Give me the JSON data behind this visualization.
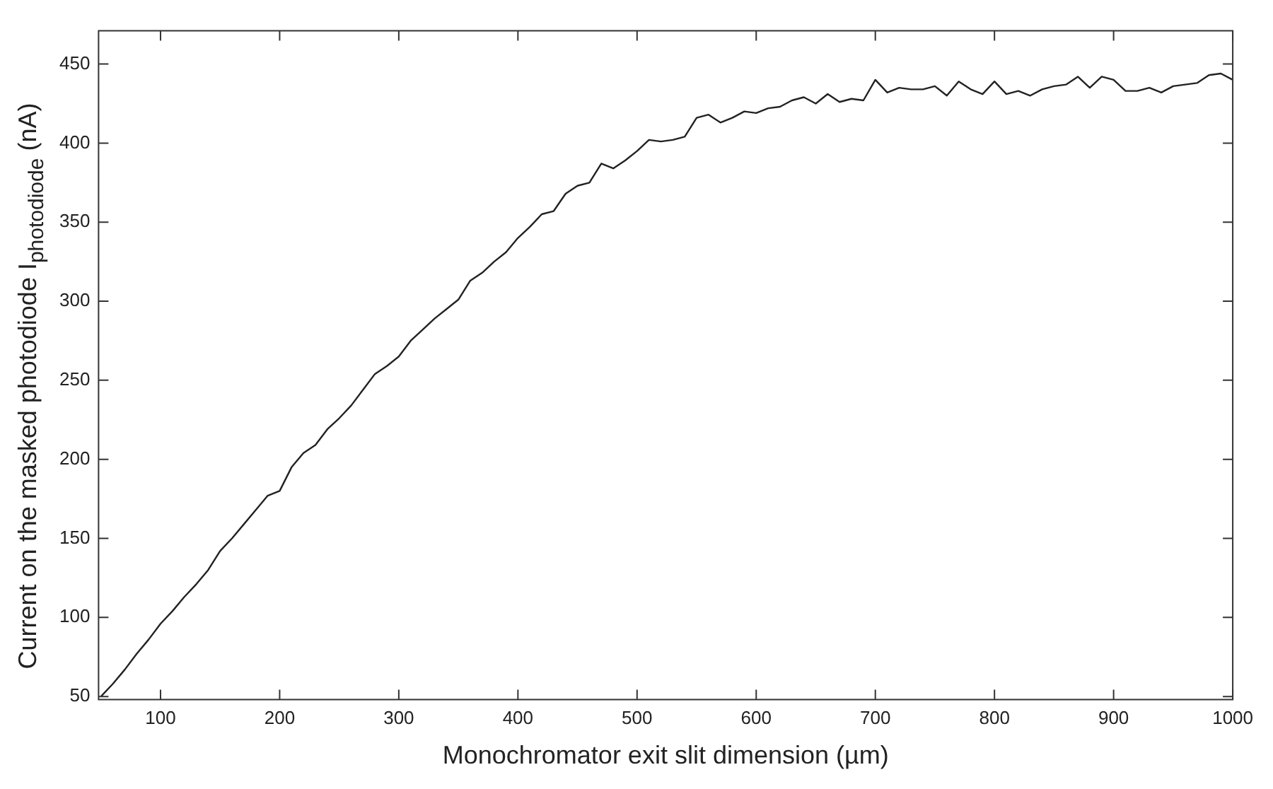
{
  "chart_data": {
    "type": "line",
    "xlabel": "Monochromator exit slit dimension (µm)",
    "ylabel": "Current on the masked photodiode I$_{photodiode}$ (nA)",
    "x": [
      50,
      60,
      70,
      80,
      90,
      100,
      110,
      120,
      130,
      140,
      150,
      160,
      170,
      180,
      190,
      200,
      210,
      220,
      230,
      240,
      250,
      260,
      270,
      280,
      290,
      300,
      310,
      320,
      330,
      340,
      350,
      360,
      370,
      380,
      390,
      400,
      410,
      420,
      430,
      440,
      450,
      460,
      470,
      480,
      490,
      500,
      510,
      520,
      530,
      540,
      550,
      560,
      570,
      580,
      590,
      600,
      610,
      620,
      630,
      640,
      650,
      660,
      670,
      680,
      690,
      700,
      710,
      720,
      730,
      740,
      750,
      760,
      770,
      780,
      790,
      800,
      810,
      820,
      830,
      840,
      850,
      860,
      870,
      880,
      890,
      900,
      910,
      920,
      930,
      940,
      950,
      960,
      970,
      980,
      990,
      1000
    ],
    "series": [
      {
        "color": "#222222",
        "values": [
          50,
          58,
          67,
          77,
          86,
          96,
          104,
          113,
          121,
          130,
          142,
          150,
          159,
          168,
          177,
          180,
          195,
          204,
          209,
          219,
          226,
          234,
          244,
          254,
          259,
          265,
          275,
          282,
          289,
          295,
          301,
          313,
          318,
          325,
          331,
          340,
          347,
          355,
          357,
          368,
          373,
          375,
          387,
          384,
          389,
          395,
          402,
          401,
          402,
          404,
          416,
          418,
          413,
          416,
          420,
          419,
          422,
          423,
          427,
          429,
          425,
          431,
          426,
          428,
          427,
          440,
          432,
          435,
          434,
          434,
          436,
          430,
          439,
          434,
          431,
          439,
          431,
          433,
          430,
          434,
          436,
          437,
          442,
          435,
          442,
          440,
          433,
          433,
          435,
          432,
          436,
          437,
          438,
          443,
          444,
          440
        ]
      }
    ],
    "xlim": [
      48,
      1000
    ],
    "ylim": [
      48,
      471
    ],
    "xticks": [
      100,
      200,
      300,
      400,
      500,
      600,
      700,
      800,
      900,
      1000
    ],
    "yticks": [
      50,
      100,
      150,
      200,
      250,
      300,
      350,
      400,
      450
    ],
    "grid": false,
    "legend": false,
    "marker": "none",
    "line_style": "solid"
  }
}
